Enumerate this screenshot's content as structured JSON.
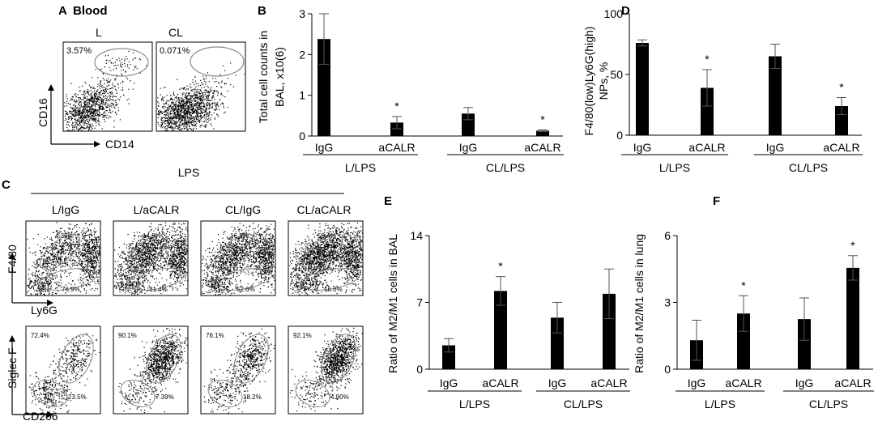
{
  "figure": {
    "panelA": {
      "letter": "A",
      "title": "Blood",
      "subpanels": [
        {
          "label": "L",
          "gate_pct": "3.57%"
        },
        {
          "label": "CL",
          "gate_pct": "0.071%"
        }
      ],
      "y_axis": "CD16",
      "x_axis": "CD14"
    },
    "panelC": {
      "letter": "C",
      "header": "LPS",
      "groups": [
        "L/IgG",
        "L/aCALR",
        "CL/IgG",
        "CL/aCALR"
      ],
      "row1": {
        "y_axis": "F4/80",
        "x_axis": "Ly6G",
        "upper_pct": [
          "4.36%",
          "14.9%",
          "16.3%",
          "50.4%"
        ],
        "lower_pct": [
          "76.9%",
          "31.4%",
          "52.6%",
          "16.6%"
        ]
      },
      "row2": {
        "y_axis": "Siglec F",
        "x_axis": "CD206",
        "upper_pct": [
          "72.4%",
          "90.1%",
          "76.1%",
          "92.1%"
        ],
        "lower_pct": [
          "23.5%",
          "7.39%",
          "18.2%",
          "4.90%"
        ]
      }
    }
  },
  "chart_data": [
    {
      "panel": "B",
      "type": "bar",
      "categories": [
        "IgG",
        "aCALR",
        "IgG",
        "aCALR"
      ],
      "groups": [
        "L/LPS",
        "CL/LPS"
      ],
      "values": [
        2.38,
        0.33,
        0.55,
        0.13
      ],
      "errors": [
        0.62,
        0.15,
        0.15,
        0.02
      ],
      "significant": [
        false,
        true,
        false,
        true
      ],
      "ylabel": [
        "Total cell counts in",
        "BAL, x10(6)"
      ],
      "ylim": [
        0,
        3
      ],
      "yticks": [
        "0",
        "1",
        "2",
        "3"
      ],
      "sig_marker": "*"
    },
    {
      "panel": "D",
      "type": "bar",
      "categories": [
        "IgG",
        "aCALR",
        "IgG",
        "aCALR"
      ],
      "groups": [
        "L/LPS",
        "CL/LPS"
      ],
      "values": [
        76,
        39,
        65,
        24
      ],
      "errors": [
        2.5,
        15,
        10,
        7
      ],
      "significant": [
        false,
        true,
        false,
        true
      ],
      "ylabel": [
        "F4/80(low)Ly6G(high)",
        "NPs, %"
      ],
      "ylim": [
        0,
        100
      ],
      "yticks": [
        "0",
        "50",
        "100"
      ],
      "sig_marker": "*"
    },
    {
      "panel": "E",
      "type": "bar",
      "categories": [
        "IgG",
        "aCALR",
        "IgG",
        "aCALR"
      ],
      "groups": [
        "L/LPS",
        "CL/LPS"
      ],
      "values": [
        2.5,
        8.2,
        5.4,
        7.9
      ],
      "errors": [
        0.7,
        1.5,
        1.6,
        2.6
      ],
      "significant": [
        false,
        true,
        false,
        false
      ],
      "ylabel": [
        "Ratio of M2/M1 cells in BAL"
      ],
      "ylim": [
        0,
        14
      ],
      "yticks": [
        "0",
        "7",
        "14"
      ],
      "sig_marker": "*"
    },
    {
      "panel": "F",
      "type": "bar",
      "categories": [
        "IgG",
        "aCALR",
        "IgG",
        "aCALR"
      ],
      "groups": [
        "L/LPS",
        "CL/LPS"
      ],
      "values": [
        1.3,
        2.5,
        2.25,
        4.55
      ],
      "errors": [
        0.9,
        0.8,
        0.95,
        0.55
      ],
      "significant": [
        false,
        true,
        false,
        true
      ],
      "ylabel": [
        "Ratio of M2/M1 cells in lung"
      ],
      "ylim": [
        0,
        6
      ],
      "yticks": [
        "0",
        "3",
        "6"
      ],
      "sig_marker": "*"
    }
  ]
}
